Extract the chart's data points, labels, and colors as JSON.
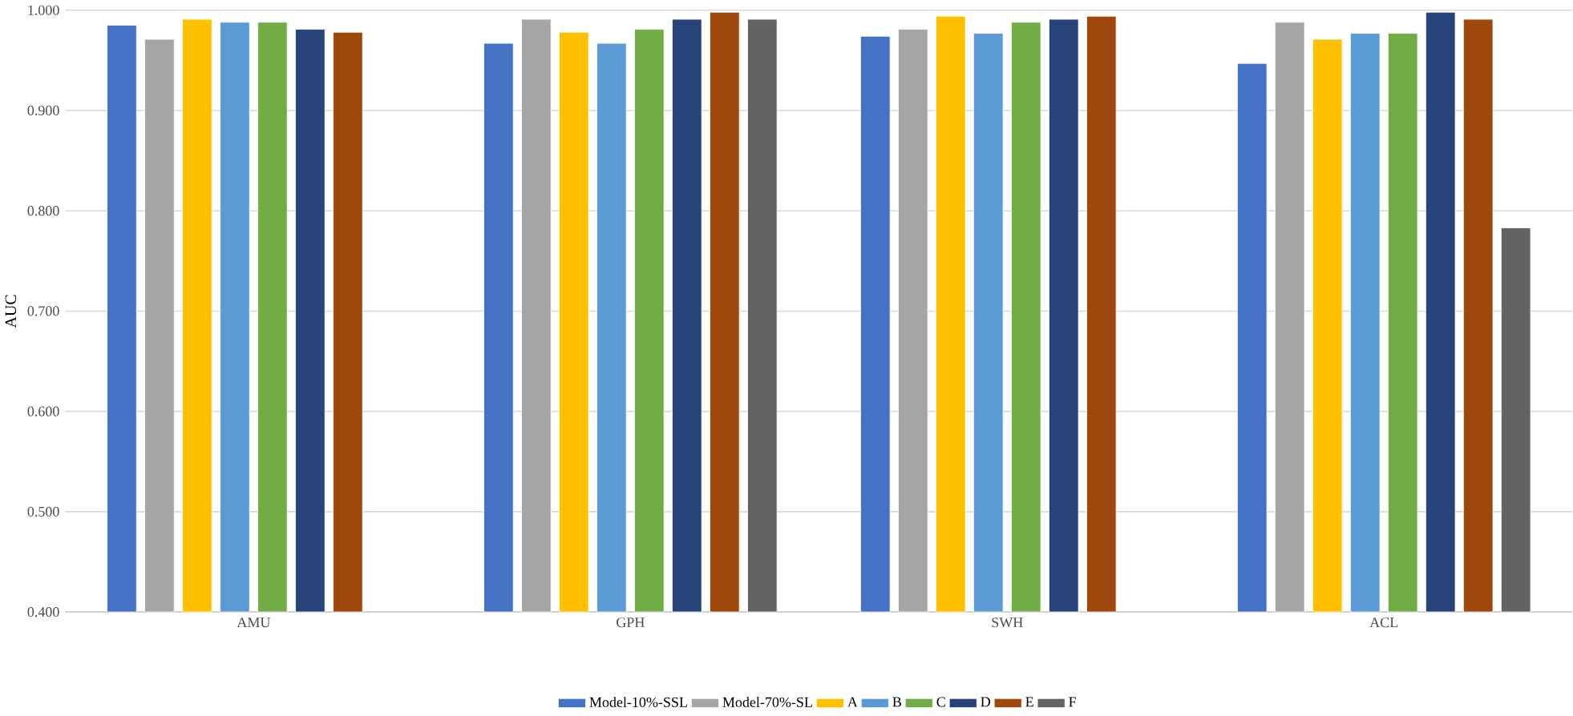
{
  "chart_data": {
    "type": "bar",
    "ylabel": "AUC",
    "categories": [
      "AMU",
      "GPH",
      "SWH",
      "ACL"
    ],
    "ylim": [
      0.4,
      1.0
    ],
    "yticks": [
      {
        "value": 0.4,
        "label": "0.400"
      },
      {
        "value": 0.5,
        "label": "0.500"
      },
      {
        "value": 0.6,
        "label": "0.600"
      },
      {
        "value": 0.7,
        "label": "0.700"
      },
      {
        "value": 0.8,
        "label": "0.800"
      },
      {
        "value": 0.9,
        "label": "0.900"
      },
      {
        "value": 1.0,
        "label": "1.000"
      }
    ],
    "grid": "y",
    "legend": "bottom",
    "series": [
      {
        "name": "Model-10%-SSL",
        "color": "#4472c4",
        "values": [
          0.985,
          0.967,
          0.974,
          0.947
        ]
      },
      {
        "name": "Model-70%-SL",
        "color": "#a5a5a5",
        "values": [
          0.971,
          0.991,
          0.981,
          0.988
        ]
      },
      {
        "name": "A",
        "color": "#ffc000",
        "values": [
          0.991,
          0.978,
          0.994,
          0.971
        ]
      },
      {
        "name": "B",
        "color": "#5b9bd5",
        "values": [
          0.988,
          0.967,
          0.977,
          0.977
        ]
      },
      {
        "name": "C",
        "color": "#70ad47",
        "values": [
          0.988,
          0.981,
          0.988,
          0.977
        ]
      },
      {
        "name": "D",
        "color": "#264478",
        "values": [
          0.981,
          0.991,
          0.991,
          0.998
        ]
      },
      {
        "name": "E",
        "color": "#9e480e",
        "values": [
          0.978,
          0.998,
          0.994,
          0.991
        ]
      },
      {
        "name": "F",
        "color": "#636363",
        "values": [
          null,
          0.991,
          null,
          0.783
        ]
      }
    ]
  }
}
